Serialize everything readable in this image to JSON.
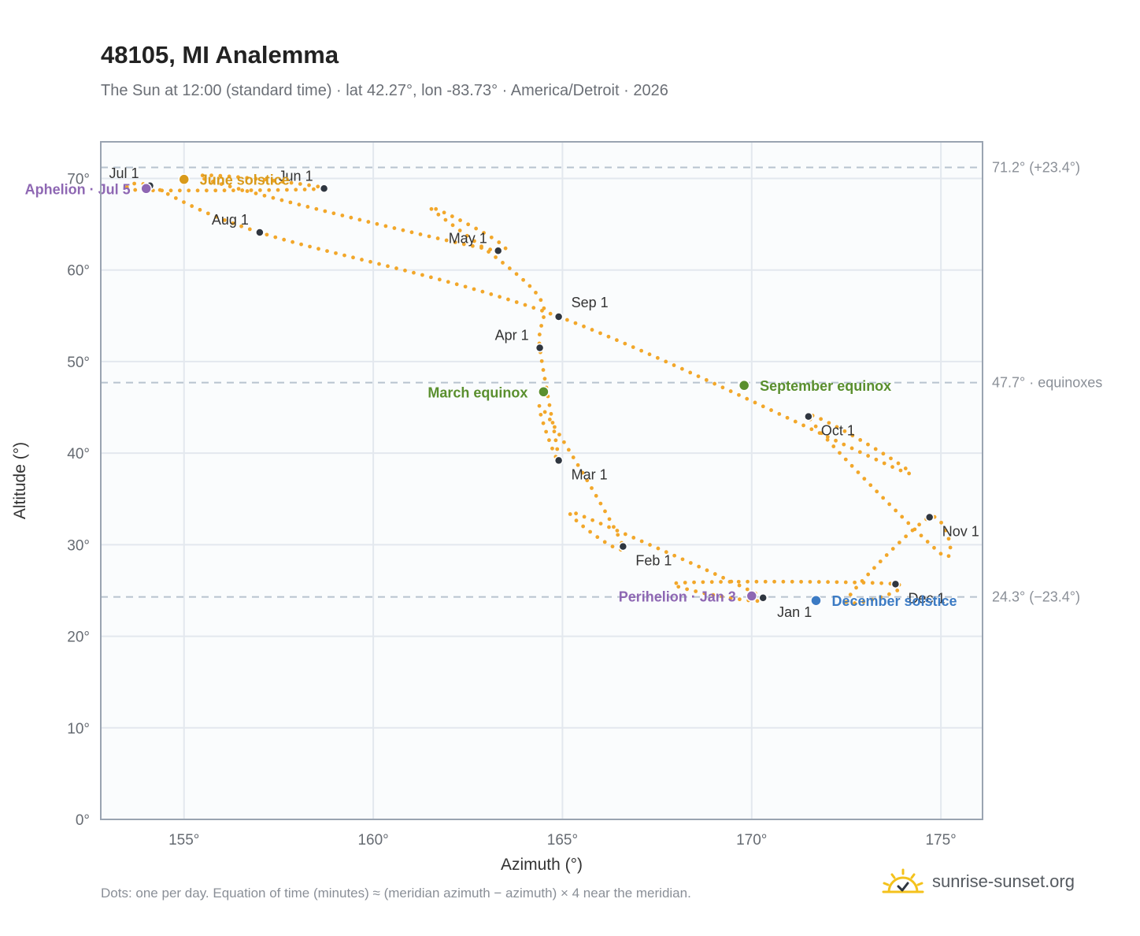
{
  "header": {
    "title": "48105, MI Analemma",
    "subtitle": "The Sun at 12:00 (standard time) · lat 42.27°, lon -83.73° · America/Detroit · 2026"
  },
  "footer": {
    "note": "Dots: one per day. Equation of time (minutes) ≈ (meridian azimuth − azimuth) × 4 near the meridian.",
    "brand": "sunrise-sunset.org",
    "brand_icon": "sun-check-icon"
  },
  "colors": {
    "curve": "#f2a72a",
    "month_dot": "#2f3640",
    "june": "#d99a1a",
    "equinox": "#5a8f2e",
    "december": "#3c7bc4",
    "apsis": "#8e67b3",
    "plot_bg": "#fafcfd",
    "grid": "#e3e8ee",
    "frame": "#9aa4b1",
    "ref_line": "#b8c3cf"
  },
  "chart_data": {
    "type": "scatter",
    "xlabel": "Azimuth (°)",
    "ylabel": "Altitude (°)",
    "xlim": [
      152.8,
      176.1
    ],
    "ylim": [
      0,
      74
    ],
    "xticks": [
      155,
      160,
      165,
      170,
      175
    ],
    "xtick_labels": [
      "155°",
      "160°",
      "165°",
      "170°",
      "175°"
    ],
    "yticks": [
      0,
      10,
      20,
      30,
      40,
      50,
      60,
      70
    ],
    "ytick_labels": [
      "0°",
      "10°",
      "20°",
      "30°",
      "40°",
      "50°",
      "60°",
      "70°"
    ],
    "grid": true,
    "reference_lines": [
      {
        "y": 71.2,
        "label": "71.2° (+23.4°)"
      },
      {
        "y": 47.7,
        "label": "47.7° · equinoxes"
      },
      {
        "y": 24.3,
        "label": "24.3° (−23.4°)"
      }
    ],
    "month_points": [
      {
        "label": "Jan 1",
        "az": 170.3,
        "alt": 24.2,
        "pos": "below"
      },
      {
        "label": "Feb 1",
        "az": 166.6,
        "alt": 29.8,
        "pos": "below-right"
      },
      {
        "label": "Mar 1",
        "az": 164.9,
        "alt": 39.2,
        "pos": "below-right"
      },
      {
        "label": "Apr 1",
        "az": 164.4,
        "alt": 51.5,
        "pos": "above-left"
      },
      {
        "label": "May 1",
        "az": 163.3,
        "alt": 62.1,
        "pos": "above-left"
      },
      {
        "label": "Jun 1",
        "az": 158.7,
        "alt": 68.9,
        "pos": "above-left"
      },
      {
        "label": "Jul 1",
        "az": 154.1,
        "alt": 69.2,
        "pos": "above-left"
      },
      {
        "label": "Aug 1",
        "az": 157.0,
        "alt": 64.1,
        "pos": "above-left"
      },
      {
        "label": "Sep 1",
        "az": 164.9,
        "alt": 54.9,
        "pos": "above-right"
      },
      {
        "label": "Oct 1",
        "az": 171.5,
        "alt": 44.0,
        "pos": "below-right"
      },
      {
        "label": "Nov 1",
        "az": 174.7,
        "alt": 33.0,
        "pos": "below-right"
      },
      {
        "label": "Dec 1",
        "az": 173.8,
        "alt": 25.7,
        "pos": "below-right"
      }
    ],
    "events": [
      {
        "label": "June solstice",
        "az": 155.0,
        "alt": 69.9,
        "color": "#d99a1a",
        "pos": "right"
      },
      {
        "label": "Aphelion · Jul 5",
        "az": 154.0,
        "alt": 68.9,
        "color": "#8e67b3",
        "pos": "left"
      },
      {
        "label": "March equinox",
        "az": 164.5,
        "alt": 46.7,
        "color": "#5a8f2e",
        "pos": "left"
      },
      {
        "label": "September equinox",
        "az": 169.8,
        "alt": 47.4,
        "color": "#5a8f2e",
        "pos": "right"
      },
      {
        "label": "Perihelion · Jan 3",
        "az": 170.0,
        "alt": 24.4,
        "color": "#8e67b3",
        "pos": "left"
      },
      {
        "label": "December solstice",
        "az": 171.7,
        "alt": 23.9,
        "color": "#3c7bc4",
        "pos": "right"
      }
    ],
    "curve_note": "one point per day"
  }
}
